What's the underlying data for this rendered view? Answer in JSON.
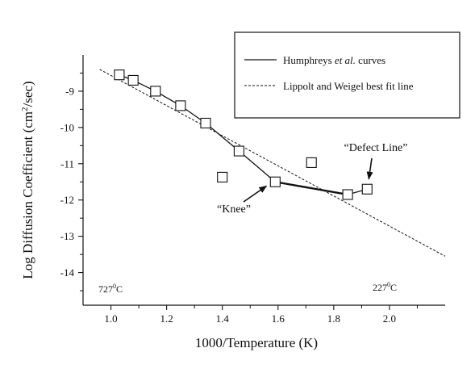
{
  "chart_data": {
    "type": "line",
    "xlabel": "1000/Temperature (K)",
    "ylabel": "Log Diffusion Coefficient (cm²/sec)",
    "ylabel_parts": {
      "pre": "Log Diffusion Coefficient (cm",
      "sup": "2",
      "post": "/sec)"
    },
    "xlim": [
      0.9,
      2.2
    ],
    "ylim": [
      -14.9,
      -8.0
    ],
    "x_ticks": [
      {
        "value": 1.0,
        "label": "1.0"
      },
      {
        "value": 1.2,
        "label": "1.2"
      },
      {
        "value": 1.4,
        "label": "1.4"
      },
      {
        "value": 1.6,
        "label": "1.6"
      },
      {
        "value": 1.8,
        "label": "1.8"
      },
      {
        "value": 2.0,
        "label": "2.0"
      }
    ],
    "x_minor_ticks": [
      1.1,
      1.3,
      1.5,
      1.7,
      1.9,
      2.1
    ],
    "y_ticks": [
      {
        "value": -9,
        "label": "-9"
      },
      {
        "value": -10,
        "label": "-10"
      },
      {
        "value": -11,
        "label": "-11"
      },
      {
        "value": -12,
        "label": "-12"
      },
      {
        "value": -13,
        "label": "-13"
      },
      {
        "value": -14,
        "label": "-14"
      }
    ],
    "y_minor_ticks": [
      -8.5,
      -9.5,
      -10.5,
      -11.5,
      -12.5,
      -13.5,
      -14.5
    ],
    "grid": false,
    "legend_position": "top-right",
    "series": [
      {
        "name_parts": {
          "pre": "Humphreys ",
          "em": "et al.",
          "post": " curves"
        },
        "style": "solid",
        "marker": "square",
        "x": [
          1.03,
          1.08,
          1.16,
          1.25,
          1.34,
          1.46,
          1.59,
          1.85,
          1.92
        ],
        "y": [
          -8.55,
          -8.7,
          -9.0,
          -9.4,
          -9.88,
          -10.65,
          -11.5,
          -11.85,
          -11.7
        ]
      },
      {
        "name": "Lippolt and Weigel best fit line",
        "style": "dashed",
        "x": [
          0.96,
          2.2
        ],
        "y": [
          -8.4,
          -13.55
        ]
      }
    ],
    "outlier_points": {
      "marker": "square",
      "x": [
        1.4,
        1.72
      ],
      "y": [
        -11.37,
        -10.97
      ]
    },
    "annotations": [
      {
        "text": "“Knee”",
        "x": 1.57,
        "y": -11.48
      },
      {
        "text": "“Defect Line”",
        "x": 1.92,
        "y": -11.6
      }
    ],
    "temperature_labels": {
      "left": {
        "num": "727",
        "deg": "0",
        "unit": "C"
      },
      "right": {
        "num": "227",
        "deg": "0",
        "unit": "C"
      }
    }
  }
}
